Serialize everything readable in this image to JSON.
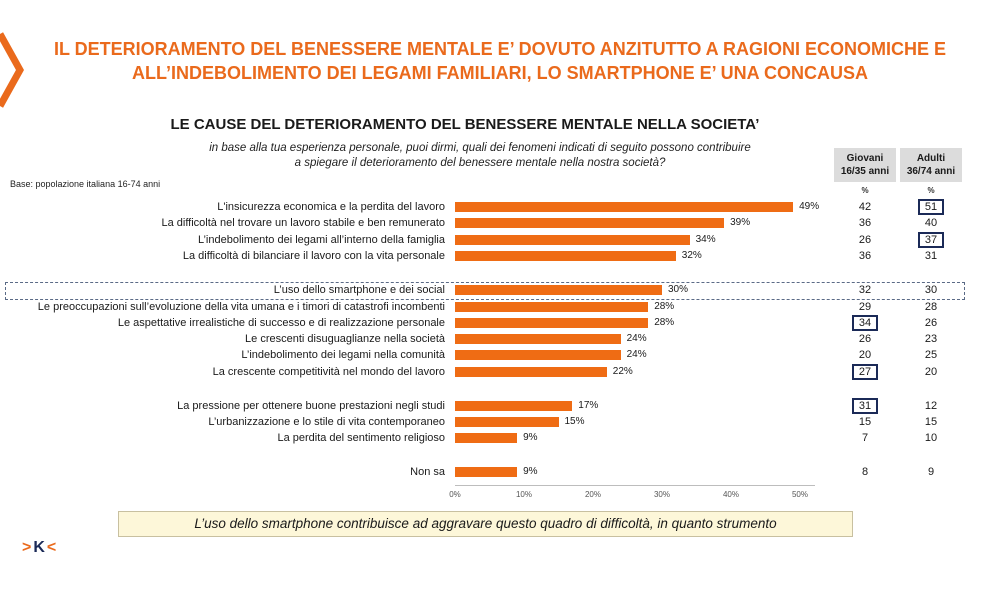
{
  "title_line1": "IL DETERIORAMENTO DEL BENESSERE MENTALE E’ DOVUTO ANZITUTTO A RAGIONI ECONOMICHE E",
  "title_line2": "ALL’INDEBOLIMENTO DEI LEGAMI FAMILIARI, LO SMARTPHONE  E’ UNA CONCAUSA",
  "subtitle": "LE CAUSE DEL DETERIORAMENTO DEL BENESSERE MENTALE NELLA SOCIETA’",
  "question_line1": "in base alla tua esperienza personale, puoi dirmi, quali dei fenomeni indicati di seguito possono contribuire",
  "question_line2": "a spiegare il deterioramento del benessere mentale nella nostra società?",
  "base": "Base: popolazione italiana 16-74 anni",
  "columns": [
    {
      "name": "Giovani",
      "sub": "16/35 anni",
      "unit": "%"
    },
    {
      "name": "Adulti",
      "sub": "36/74 anni",
      "unit": "%"
    }
  ],
  "chart_data": {
    "type": "bar",
    "orientation": "horizontal",
    "categories": [
      "L'insicurezza economica e la perdita del lavoro",
      "La difficoltà nel trovare un lavoro stabile e ben remunerato",
      "L’indebolimento dei legami all’interno della famiglia",
      "La difficoltà di bilanciare il lavoro con la vita personale",
      "L’uso dello smartphone e dei social",
      "Le preoccupazioni sull’evoluzione della vita umana e i timori di catastrofi incombenti",
      "Le aspettative irrealistiche di successo e di realizzazione personale",
      "Le crescenti disuguaglianze nella società",
      "L’indebolimento dei legami nella comunità",
      "La crescente competitività nel mondo del lavoro",
      "La pressione per ottenere buone prestazioni negli studi",
      "L’urbanizzazione e lo stile di vita contemporaneo",
      "La perdita del sentimento religioso",
      "Non sa"
    ],
    "values": [
      49,
      39,
      34,
      32,
      30,
      28,
      28,
      24,
      24,
      22,
      17,
      15,
      9,
      9
    ],
    "value_labels": [
      "49%",
      "39%",
      "34%",
      "32%",
      "30%",
      "28%",
      "28%",
      "24%",
      "24%",
      "22%",
      "17%",
      "15%",
      "9%",
      "9%"
    ],
    "giovani": [
      "42",
      "36",
      "26",
      "36",
      "32",
      "29",
      "34",
      "26",
      "20",
      "27",
      "31",
      "15",
      "7",
      "8"
    ],
    "adulti": [
      "51",
      "40",
      "37",
      "31",
      "30",
      "28",
      "26",
      "23",
      "25",
      "20",
      "12",
      "15",
      "10",
      "9"
    ],
    "giovani_highlight": [
      false,
      false,
      false,
      false,
      false,
      false,
      true,
      false,
      false,
      true,
      true,
      false,
      false,
      false
    ],
    "adulti_highlight": [
      true,
      false,
      true,
      false,
      false,
      false,
      false,
      false,
      false,
      false,
      false,
      false,
      false,
      false
    ],
    "dashed_highlight_row": 4,
    "xlim": [
      0,
      50
    ],
    "xticks": [
      "0%",
      "10%",
      "20%",
      "30%",
      "40%",
      "50%"
    ],
    "title": "LE CAUSE DEL DETERIORAMENTO DEL BENESSERE MENTALE NELLA SOCIETA’",
    "xlabel": "",
    "ylabel": ""
  },
  "note": "L’uso dello smartphone contribuisce ad aggravare questo quadro di difficoltà, in quanto strumento",
  "logo": {
    "left": ">",
    "mid": "K",
    "right": "<"
  },
  "colors": {
    "accent": "#ea6a1c",
    "bar": "#ef6c14",
    "navy": "#1b2a57",
    "header_bg": "#dcdcdc",
    "note_bg": "#fdf7d9"
  }
}
